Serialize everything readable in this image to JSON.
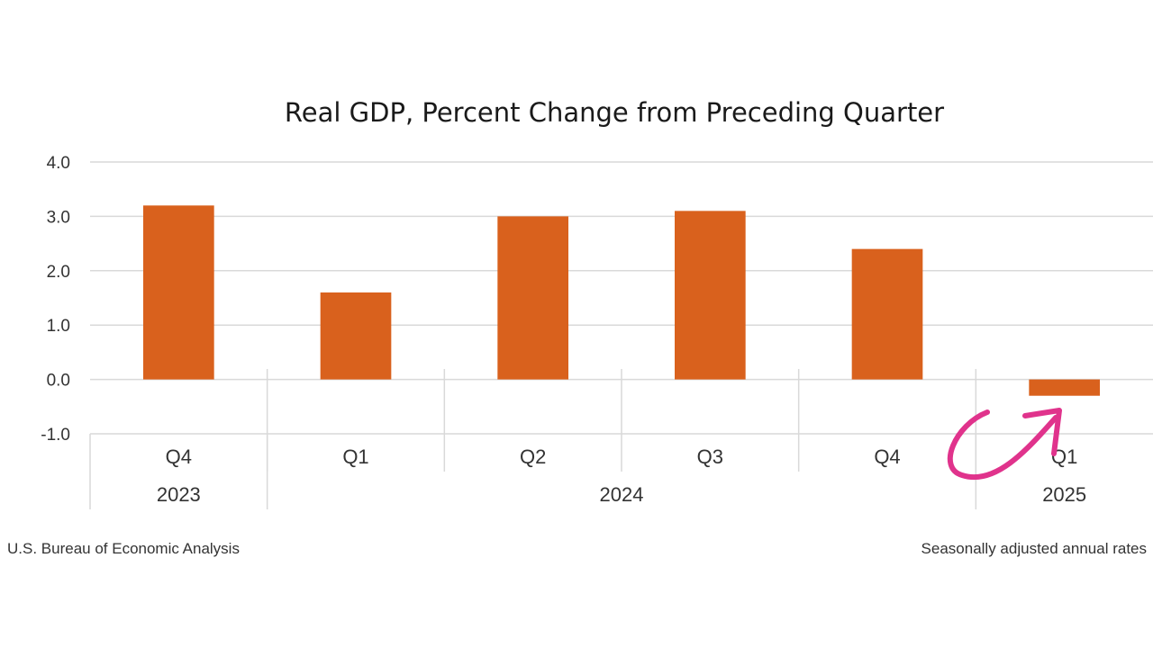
{
  "colors": {
    "bar": "#d9611d",
    "grid": "#d9d9d9",
    "annotation_arrow": "#e0338c"
  },
  "footer": {
    "source": "U.S. Bureau of Economic Analysis",
    "note": "Seasonally adjusted annual rates"
  },
  "chart_data": {
    "type": "bar",
    "title": "Real GDP, Percent Change from Preceding Quarter",
    "xlabel": "",
    "ylabel": "",
    "ylim": [
      -1.0,
      4.0
    ],
    "yticks": [
      "-1.0",
      "0.0",
      "1.0",
      "2.0",
      "3.0",
      "4.0"
    ],
    "grid": true,
    "categories": [
      "Q4",
      "Q1",
      "Q2",
      "Q3",
      "Q4",
      "Q1"
    ],
    "values": [
      3.2,
      1.6,
      3.0,
      3.1,
      2.4,
      -0.3
    ],
    "year_groups": [
      {
        "label": "2023",
        "start": 0,
        "end": 0
      },
      {
        "label": "2024",
        "start": 1,
        "end": 4
      },
      {
        "label": "2025",
        "start": 5,
        "end": 5
      }
    ],
    "annotations": [
      {
        "type": "arrow",
        "target_category": 5
      }
    ]
  }
}
